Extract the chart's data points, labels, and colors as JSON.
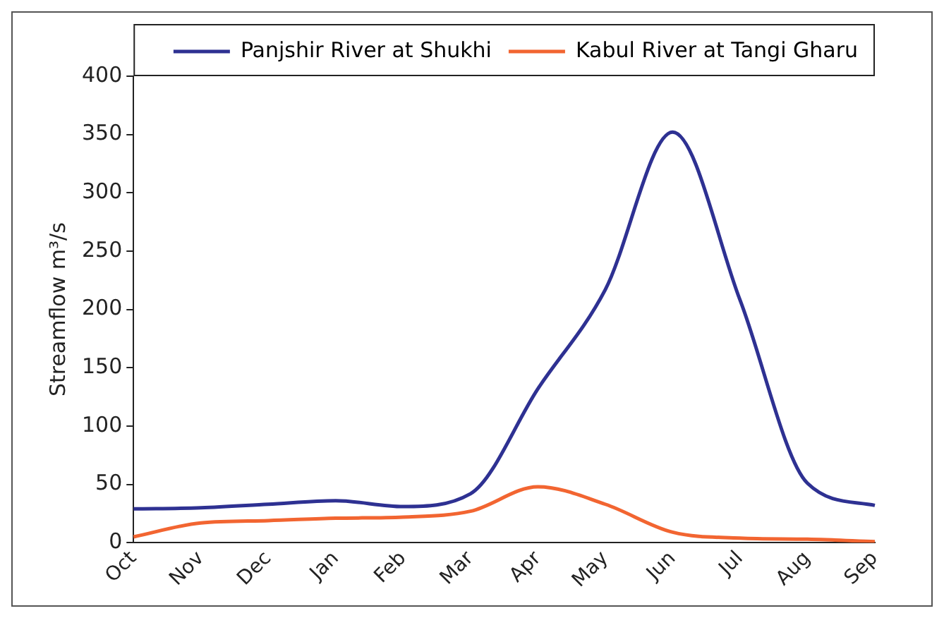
{
  "chart_data": {
    "type": "line",
    "ylabel": "Streamflow m³/s",
    "categories": [
      "Oct",
      "Nov",
      "Dec",
      "Jan",
      "Feb",
      "Mar",
      "Apr",
      "May",
      "Jun",
      "Jul",
      "Aug",
      "Sep"
    ],
    "series": [
      {
        "name": "Panjshir River at Shukhi",
        "color": "#2e3192",
        "values": [
          29,
          30,
          33,
          36,
          31,
          42,
          132,
          217,
          352,
          208,
          51,
          32
        ]
      },
      {
        "name": "Kabul River at Tangi Gharu",
        "color": "#f26531",
        "values": [
          5,
          17,
          19,
          21,
          22,
          27,
          48,
          33,
          9,
          4,
          3,
          1
        ]
      }
    ],
    "ylim": [
      0,
      400
    ],
    "yticks": [
      0,
      50,
      100,
      150,
      200,
      250,
      300,
      350,
      400
    ],
    "grid": false,
    "legend": "top right",
    "marker": "none"
  }
}
